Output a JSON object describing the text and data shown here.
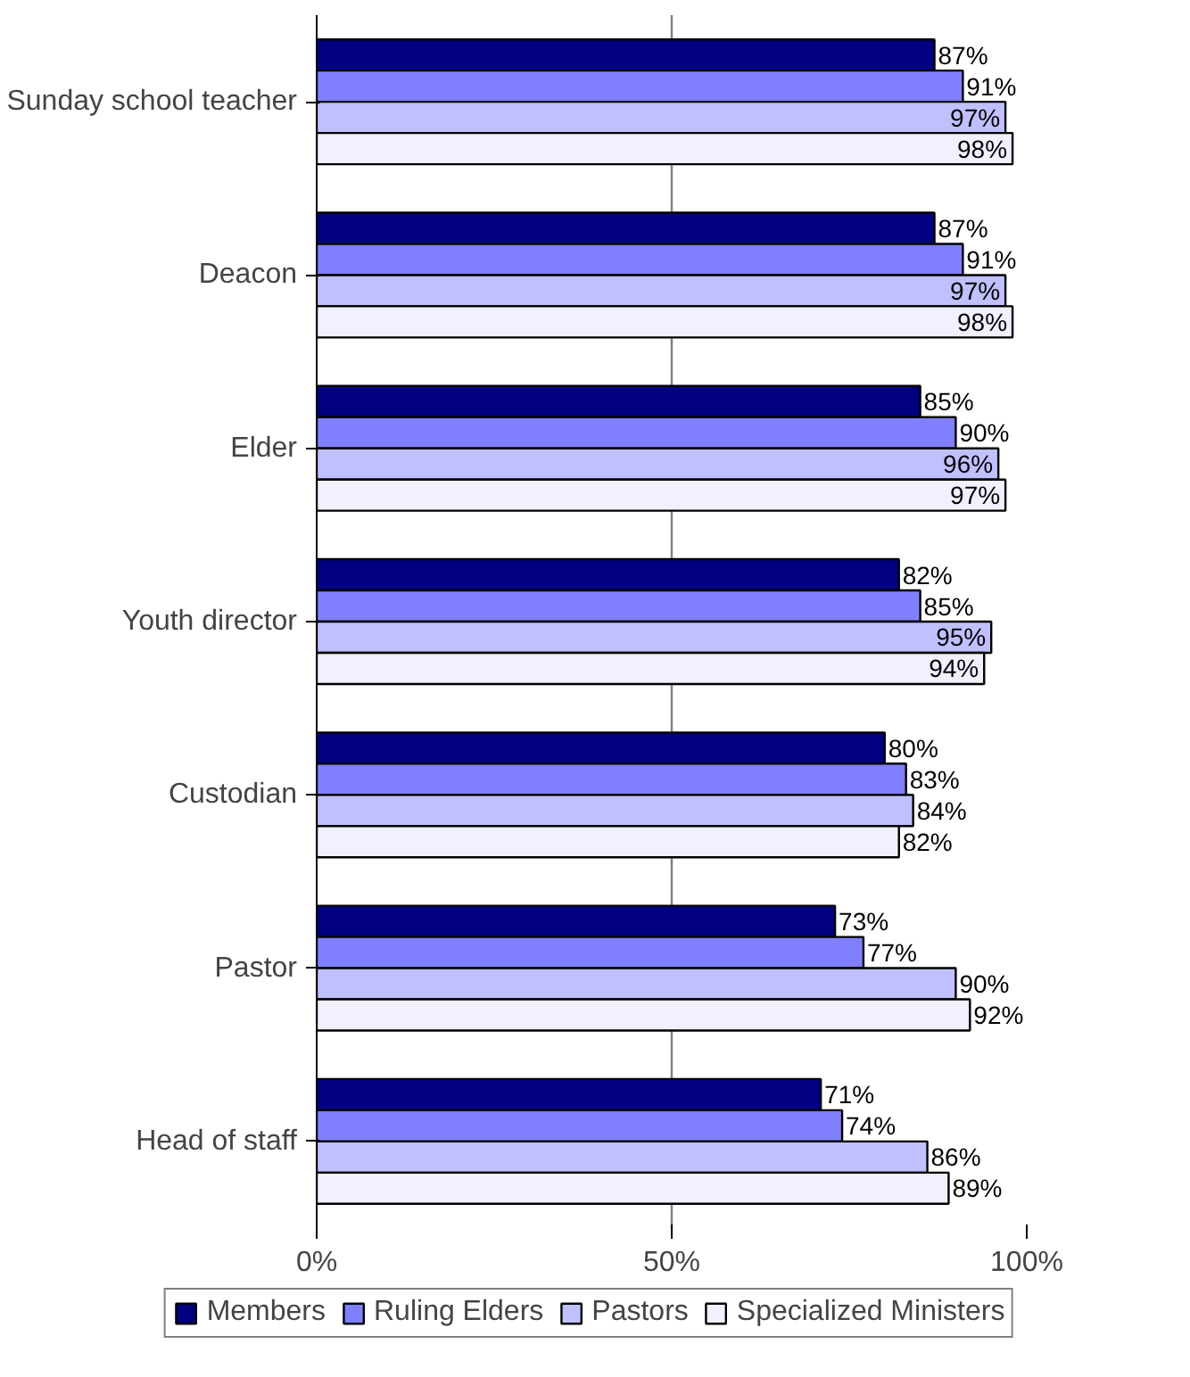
{
  "chart_data": {
    "type": "bar",
    "orientation": "horizontal",
    "categories": [
      "Sunday school teacher",
      "Deacon",
      "Elder",
      "Youth director",
      "Custodian",
      "Pastor",
      "Head of staff"
    ],
    "series": [
      {
        "name": "Members",
        "color": "#000080",
        "values": [
          87,
          87,
          85,
          82,
          80,
          73,
          71
        ],
        "value_labels": [
          "87%",
          "87%",
          "85%",
          "82%",
          "80%",
          "73%",
          "71%"
        ]
      },
      {
        "name": "Ruling Elders",
        "color": "#8080ff",
        "values": [
          91,
          91,
          90,
          85,
          83,
          77,
          74
        ],
        "value_labels": [
          "91%",
          "91%",
          "90%",
          "85%",
          "83%",
          "77%",
          "74%"
        ]
      },
      {
        "name": "Pastors",
        "color": "#c0c0ff",
        "values": [
          97,
          97,
          96,
          95,
          84,
          90,
          86
        ],
        "value_labels": [
          "97%",
          "97%",
          "96%",
          "95%",
          "84%",
          "90%",
          "86%"
        ]
      },
      {
        "name": "Specialized Ministers",
        "color": "#f0f0ff",
        "values": [
          98,
          98,
          97,
          94,
          82,
          92,
          89
        ],
        "value_labels": [
          "98%",
          "98%",
          "97%",
          "94%",
          "82%",
          "92%",
          "89%"
        ]
      }
    ],
    "xlim": [
      0,
      100
    ],
    "xticks": [
      {
        "value": 0,
        "label": "0%"
      },
      {
        "value": 50,
        "label": "50%"
      },
      {
        "value": 100,
        "label": "100%"
      }
    ],
    "grid": "x",
    "legend": "bottom"
  }
}
